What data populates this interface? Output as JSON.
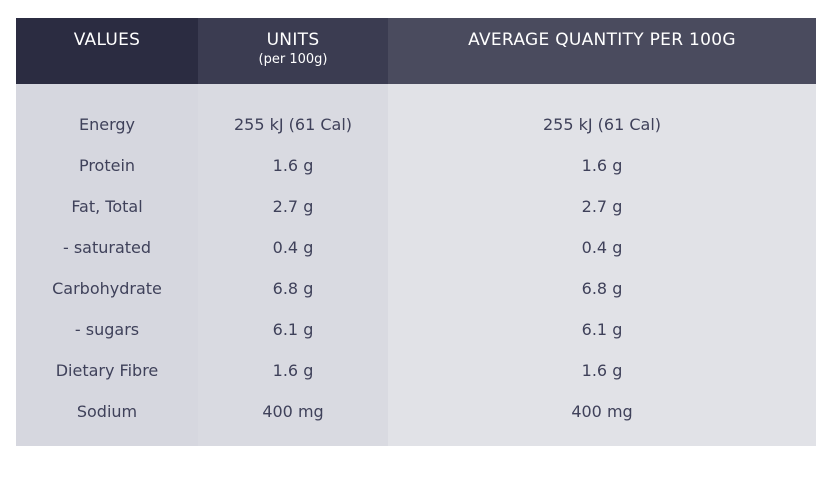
{
  "header": {
    "values_label": "VALUES",
    "units_label": "UNITS",
    "units_sub": "(per 100g)",
    "average_label": "AVERAGE QUANTITY PER 100G"
  },
  "rows": [
    {
      "name": "Energy",
      "unit": "255 kJ (61 Cal)",
      "avg": "255 kJ (61 Cal)"
    },
    {
      "name": "Protein",
      "unit": "1.6 g",
      "avg": "1.6 g"
    },
    {
      "name": "Fat, Total",
      "unit": "2.7 g",
      "avg": "2.7 g"
    },
    {
      "name": "- saturated",
      "unit": "0.4 g",
      "avg": "0.4 g"
    },
    {
      "name": "Carbohydrate",
      "unit": "6.8 g",
      "avg": "6.8 g"
    },
    {
      "name": "- sugars",
      "unit": "6.1 g",
      "avg": "6.1 g"
    },
    {
      "name": "Dietary Fibre",
      "unit": "1.6 g",
      "avg": "1.6 g"
    },
    {
      "name": "Sodium",
      "unit": "400 mg",
      "avg": "400 mg"
    }
  ],
  "colors": {
    "header_col1": "#2b2c41",
    "header_col2": "#3b3c51",
    "header_col3": "#4a4b5e",
    "body_col1": "#d6d7df",
    "body_col2": "#d9dae1",
    "body_col3": "#e1e2e7",
    "text": "#3f415a"
  }
}
